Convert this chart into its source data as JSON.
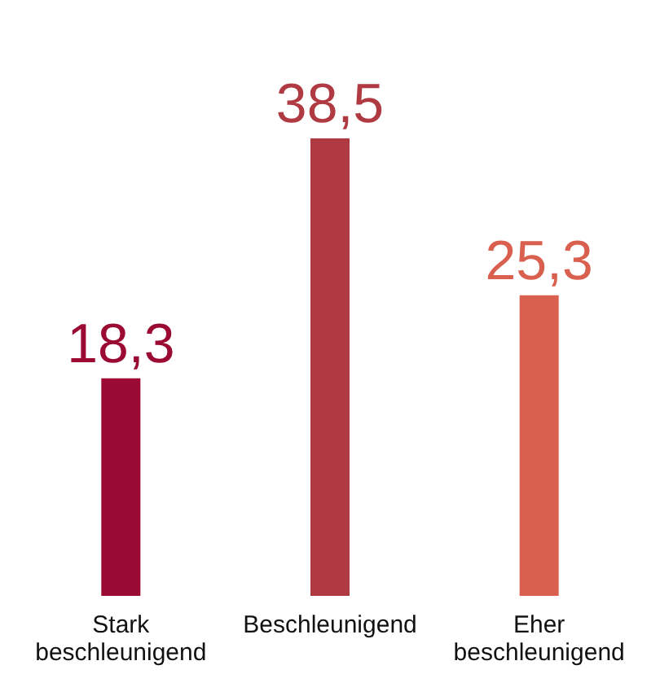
{
  "chart_data": {
    "type": "bar",
    "categories": [
      "Stark beschleunigend",
      "Beschleunigend",
      "Eher beschleunigend"
    ],
    "values": [
      18.3,
      38.5,
      25.3
    ],
    "colors": [
      "#9b0a32",
      "#b03a42",
      "#d9604f"
    ],
    "value_labels": [
      "18,3",
      "38,5",
      "25,3"
    ]
  }
}
